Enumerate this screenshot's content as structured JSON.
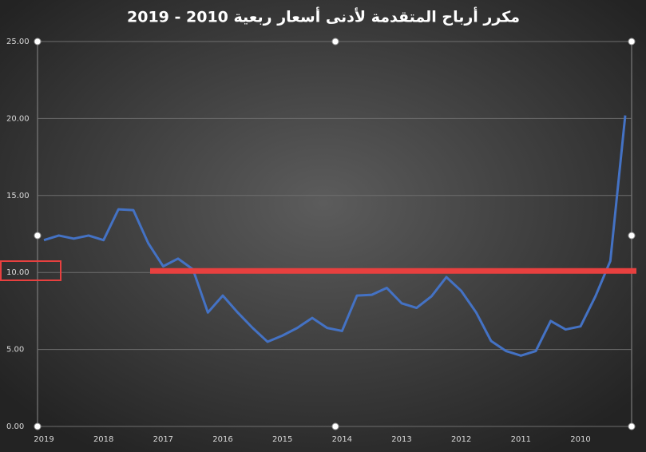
{
  "chart_data": {
    "type": "line",
    "title": "مكرر أرباح المتقدمة لأدنى أسعار ربعية 2010 - 2019",
    "categories": [
      "2019",
      null,
      null,
      null,
      "2018",
      null,
      null,
      null,
      "2017",
      null,
      null,
      null,
      "2016",
      null,
      null,
      null,
      "2015",
      null,
      null,
      null,
      "2014",
      null,
      null,
      null,
      "2013",
      null,
      null,
      null,
      "2012",
      null,
      null,
      null,
      "2011",
      null,
      null,
      null,
      "2010",
      null,
      null,
      null
    ],
    "series": [
      {
        "color": "#4472c4",
        "values": [
          12.1,
          12.4,
          12.2,
          12.4,
          12.1,
          14.1,
          14.05,
          11.9,
          10.4,
          10.9,
          10.2,
          7.4,
          8.5,
          7.4,
          6.4,
          5.5,
          5.9,
          6.4,
          7.05,
          6.4,
          6.2,
          8.5,
          8.55,
          9.0,
          8.0,
          7.7,
          8.45,
          9.7,
          8.8,
          7.4,
          5.55,
          4.9,
          4.6,
          4.9,
          6.85,
          6.3,
          6.5,
          8.45,
          10.75,
          20.2
        ]
      }
    ],
    "ylim": [
      0,
      25
    ],
    "yticks": [
      {
        "value": 0,
        "label": "0.00"
      },
      {
        "value": 5,
        "label": "5.00"
      },
      {
        "value": 10,
        "label": "10.00"
      },
      {
        "value": 15,
        "label": "15.00"
      },
      {
        "value": 20,
        "label": "20.00"
      },
      {
        "value": 25,
        "label": "25.00"
      }
    ],
    "grid": true,
    "reference_line": {
      "value": 10.1,
      "color": "#e8403f"
    }
  }
}
